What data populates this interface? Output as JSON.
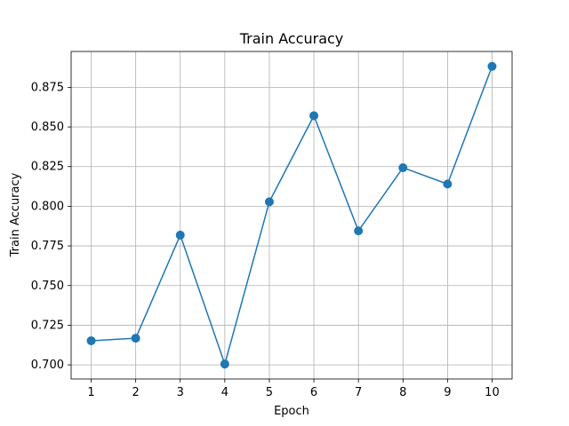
{
  "chart_data": {
    "type": "line",
    "title": "Train Accuracy",
    "xlabel": "Epoch",
    "ylabel": "Train Accuracy",
    "x": [
      1,
      2,
      3,
      4,
      5,
      6,
      7,
      8,
      9,
      10
    ],
    "series": [
      {
        "values": [
          0.7152,
          0.7168,
          0.7818,
          0.7005,
          0.8028,
          0.8571,
          0.7845,
          0.8243,
          0.814,
          0.8882
        ],
        "color": "#1f77b4",
        "marker": "circle"
      }
    ],
    "xticks": [
      "1",
      "2",
      "3",
      "4",
      "5",
      "6",
      "7",
      "8",
      "9",
      "10"
    ],
    "yticks": [
      "0.700",
      "0.725",
      "0.750",
      "0.775",
      "0.800",
      "0.825",
      "0.850",
      "0.875"
    ],
    "xlim": [
      0.55,
      10.45
    ],
    "ylim": [
      0.6911,
      0.8976
    ],
    "grid": true
  }
}
